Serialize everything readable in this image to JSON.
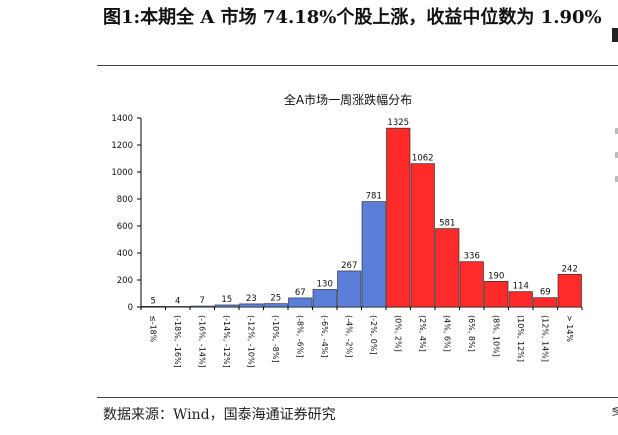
{
  "figure": {
    "title": "图1:本期全 A 市场 74.18%个股上涨，收益中位数为 1.90%",
    "source": "数据来源：Wind，国泰海通证券研究",
    "right_edge_text": "≶"
  },
  "colors": {
    "negative_bar": "#5b7fd9",
    "positive_bar": "#ff2a2a",
    "bar_outline": "#222222",
    "axis": "#000000"
  },
  "chart_data": {
    "type": "bar",
    "title": "全A市场一周涨跌幅分布",
    "categories": [
      "≤-18%",
      "(-18%, -16%]",
      "(-16%, -14%]",
      "(-14%, -12%]",
      "(-12%, -10%]",
      "(-10%, -8%]",
      "(-8%, -6%]",
      "(-6%, -4%]",
      "(-4%, -2%]",
      "(-2%, 0%]",
      "(0%, 2%]",
      "(2%, 4%]",
      "(4%, 6%]",
      "(6%, 8%]",
      "(8%, 10%]",
      "(10%, 12%]",
      "(12%, 14%]",
      "> 14%"
    ],
    "values": [
      5,
      4,
      7,
      15,
      23,
      25,
      67,
      130,
      267,
      781,
      1325,
      1062,
      581,
      336,
      190,
      114,
      69,
      242
    ],
    "value_labels": [
      "5",
      "4",
      "7",
      "15",
      "23",
      "25",
      "67",
      "130",
      "267",
      "781",
      "1325",
      "1062",
      "581",
      "336",
      "190",
      "114",
      "69",
      "242"
    ],
    "bar_colors": [
      "negative",
      "negative",
      "negative",
      "negative",
      "negative",
      "negative",
      "negative",
      "negative",
      "negative",
      "negative",
      "positive",
      "positive",
      "positive",
      "positive",
      "positive",
      "positive",
      "positive",
      "positive"
    ],
    "ylim": [
      0,
      1400
    ],
    "yticks": [
      0,
      200,
      400,
      600,
      800,
      1000,
      1200,
      1400
    ],
    "ytick_labels": [
      "0",
      "200",
      "400",
      "600",
      "800",
      "1000",
      "1200",
      "1400"
    ],
    "xlabel": "",
    "ylabel": "",
    "grid": false,
    "legend": "none"
  }
}
